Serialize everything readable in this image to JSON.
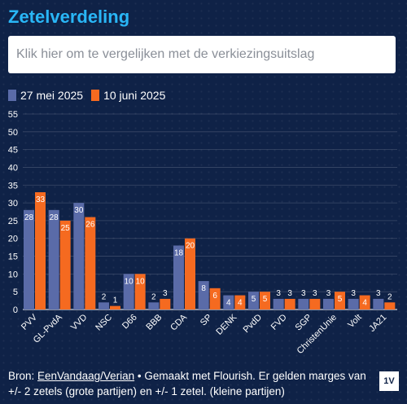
{
  "title": "Zetelverdeling",
  "search": {
    "placeholder": "Klik hier om te vergelijken met de verkiezingsuitslag"
  },
  "colors": {
    "series1": "#5a6ba8",
    "series2": "#f56a20",
    "title": "#29b6f6"
  },
  "footer": {
    "prefix": "Bron: ",
    "source": "EenVandaag/Verian",
    "rest": " • Gemaakt met Flourish. Er gelden marges van +/- 2 zetels (grote partijen) en +/- 1 zetel. (kleine partijen)"
  },
  "logo": "1V",
  "chart_data": {
    "type": "bar",
    "categories": [
      "PVV",
      "GL-PvdA",
      "VVD",
      "NSC",
      "D66",
      "BBB",
      "CDA",
      "SP",
      "DENK",
      "PvdD",
      "FVD",
      "SGP",
      "ChristenUnie",
      "Volt",
      "JA21"
    ],
    "series": [
      {
        "name": "27 mei 2025",
        "values": [
          28,
          28,
          30,
          2,
          10,
          2,
          18,
          8,
          4,
          5,
          3,
          3,
          3,
          3,
          3
        ]
      },
      {
        "name": "10 juni 2025",
        "values": [
          33,
          25,
          26,
          1,
          10,
          3,
          20,
          6,
          4,
          5,
          3,
          3,
          5,
          4,
          2
        ]
      }
    ],
    "yticks": [
      0,
      5,
      10,
      15,
      20,
      25,
      30,
      35,
      40,
      45,
      50,
      55
    ],
    "ylim": [
      0,
      55
    ],
    "grid": true,
    "legend_position": "top-left"
  }
}
